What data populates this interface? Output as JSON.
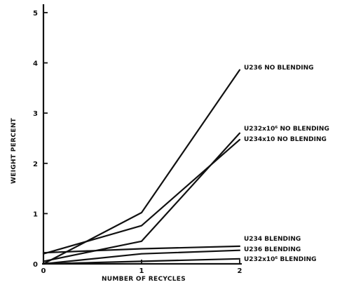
{
  "chart_data": {
    "type": "line",
    "title": "",
    "xlabel": "NUMBER OF RECYCLES",
    "ylabel": "WEIGHT PERCENT",
    "x": [
      0,
      1,
      2
    ],
    "xticks": [
      "0",
      "1",
      "2"
    ],
    "yticks": [
      "0",
      "1",
      "2",
      "3",
      "4",
      "5"
    ],
    "xlim": [
      0,
      2
    ],
    "ylim": [
      0,
      5
    ],
    "grid": false,
    "legend": "none",
    "series": [
      {
        "name": "U236 NO BLENDING",
        "values": [
          0.0,
          1.02,
          3.86
        ]
      },
      {
        "name": "U232x10⁶ NO BLENDING",
        "values": [
          0.05,
          0.45,
          2.6
        ]
      },
      {
        "name": "U234x10 NO BLENDING",
        "values": [
          0.2,
          0.76,
          2.47
        ]
      },
      {
        "name": "U234 BLENDING",
        "values": [
          0.22,
          0.3,
          0.35
        ]
      },
      {
        "name": "U236 BLENDING",
        "values": [
          0.0,
          0.2,
          0.27
        ]
      },
      {
        "name": "U232x10⁶ BLENDING",
        "values": [
          0.0,
          0.05,
          0.1
        ]
      }
    ]
  }
}
